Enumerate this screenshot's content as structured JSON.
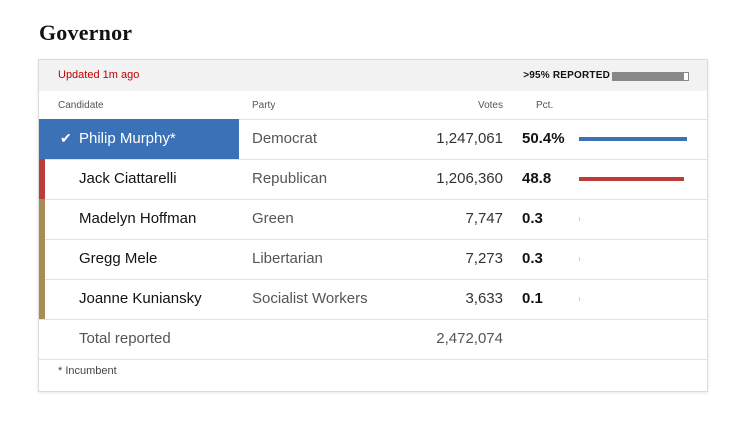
{
  "title": "Governor",
  "status": {
    "updated": "Updated 1m ago",
    "reported_label": ">95% REPORTED",
    "reported_fraction": 0.95
  },
  "columns": {
    "candidate": "Candidate",
    "party": "Party",
    "votes": "Votes",
    "pct": "Pct."
  },
  "rows": [
    {
      "candidate": "Philip Murphy*",
      "party": "Democrat",
      "votes": "1,247,061",
      "pct": "50.4%",
      "pct_value": 50.4,
      "color": "#3a71b7",
      "winner": true
    },
    {
      "candidate": "Jack Ciattarelli",
      "party": "Republican",
      "votes": "1,206,360",
      "pct": "48.8",
      "pct_value": 48.8,
      "color": "#bf3b3b",
      "winner": false
    },
    {
      "candidate": "Madelyn Hoffman",
      "party": "Green",
      "votes": "7,747",
      "pct": "0.3",
      "pct_value": 0.3,
      "color": "#a88d55",
      "winner": false
    },
    {
      "candidate": "Gregg Mele",
      "party": "Libertarian",
      "votes": "7,273",
      "pct": "0.3",
      "pct_value": 0.3,
      "color": "#a88d55",
      "winner": false
    },
    {
      "candidate": "Joanne Kuniansky",
      "party": "Socialist Workers",
      "votes": "3,633",
      "pct": "0.1",
      "pct_value": 0.1,
      "color": "#a88d55",
      "winner": false
    }
  ],
  "total": {
    "label": "Total reported",
    "votes": "2,472,074"
  },
  "footnote": "* Incumbent",
  "check_icon": "✔"
}
